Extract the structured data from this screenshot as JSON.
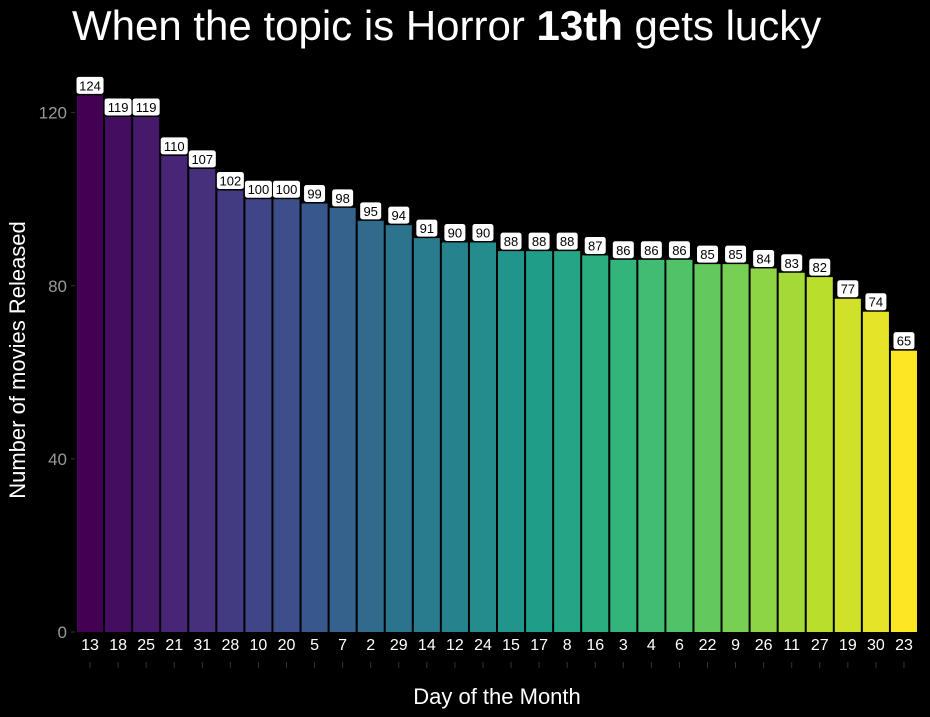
{
  "title": {
    "prefix": "When the topic is Horror ",
    "bold": "13th",
    "suffix": " gets lucky"
  },
  "chart_data": {
    "type": "bar",
    "title": "When the topic is Horror 13th gets lucky",
    "xlabel": "Day of the Month",
    "ylabel": "Number of movies Released",
    "categories": [
      "13",
      "18",
      "25",
      "21",
      "31",
      "28",
      "10",
      "20",
      "5",
      "7",
      "2",
      "29",
      "14",
      "12",
      "24",
      "15",
      "17",
      "8",
      "16",
      "3",
      "4",
      "6",
      "22",
      "9",
      "26",
      "11",
      "27",
      "19",
      "30",
      "23"
    ],
    "values": [
      124,
      119,
      119,
      110,
      107,
      102,
      100,
      100,
      99,
      98,
      95,
      94,
      91,
      90,
      90,
      88,
      88,
      88,
      87,
      86,
      86,
      86,
      85,
      85,
      84,
      83,
      82,
      77,
      74,
      65
    ],
    "ylim": [
      0,
      128
    ],
    "yticks": [
      0,
      40,
      80,
      120
    ],
    "grid": false,
    "legend": "none",
    "colormap": "viridis",
    "background": "#000000"
  }
}
